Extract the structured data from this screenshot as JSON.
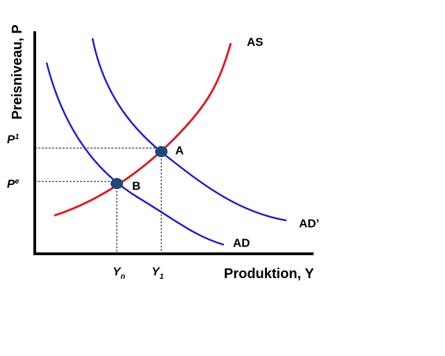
{
  "axes": {
    "y_label": "Preisniveau, P",
    "x_label": "Produktion, Y"
  },
  "y_ticks": [
    {
      "base": "P",
      "sup": "1"
    },
    {
      "base": "P",
      "sup": "e"
    }
  ],
  "x_ticks": [
    {
      "base": "Y",
      "sub": "n"
    },
    {
      "base": "Y",
      "sub": "1"
    }
  ],
  "curves": [
    {
      "label": "AS"
    },
    {
      "label": "AD’"
    },
    {
      "label": "AD"
    }
  ],
  "points": [
    {
      "label": "A"
    },
    {
      "label": "B"
    }
  ]
}
